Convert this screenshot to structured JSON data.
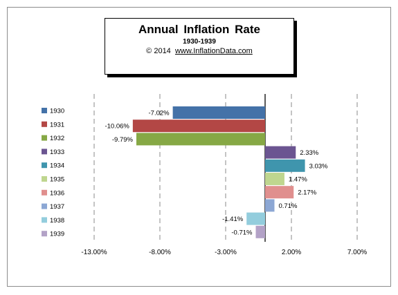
{
  "title": "Annual  Inflation Rate",
  "subtitle": "1930-1939",
  "source_prefix": "© 2014",
  "source_url": "www.InflationData.com",
  "chart_data": {
    "type": "bar",
    "orientation": "horizontal",
    "title": "Annual  Inflation Rate",
    "subtitle": "1930-1939",
    "categories": [
      "1930",
      "1931",
      "1932",
      "1933",
      "1934",
      "1935",
      "1936",
      "1937",
      "1938",
      "1939"
    ],
    "values": [
      -7.02,
      -10.06,
      -9.79,
      2.33,
      3.03,
      1.47,
      2.17,
      0.71,
      -1.41,
      -0.71
    ],
    "data_labels": [
      "-7.02%",
      "-10.06%",
      "-9.79%",
      "2.33%",
      "3.03%",
      "1.47%",
      "2.17%",
      "0.71%",
      "-1.41%",
      "-0.71%"
    ],
    "colors": [
      "#4472a8",
      "#b34745",
      "#86a845",
      "#6b5591",
      "#3f95ad",
      "#bfd68f",
      "#e08f8e",
      "#8ca7d4",
      "#93cddd",
      "#b3a2c7"
    ],
    "xlim": [
      -13,
      7
    ],
    "xticks": [
      -13,
      -8,
      -3,
      2,
      7
    ],
    "xtick_labels": [
      "-13.00%",
      "-8.00%",
      "-3.00%",
      "2.00%",
      "7.00%"
    ],
    "grid": "vertical dashed",
    "legend_position": "left"
  }
}
